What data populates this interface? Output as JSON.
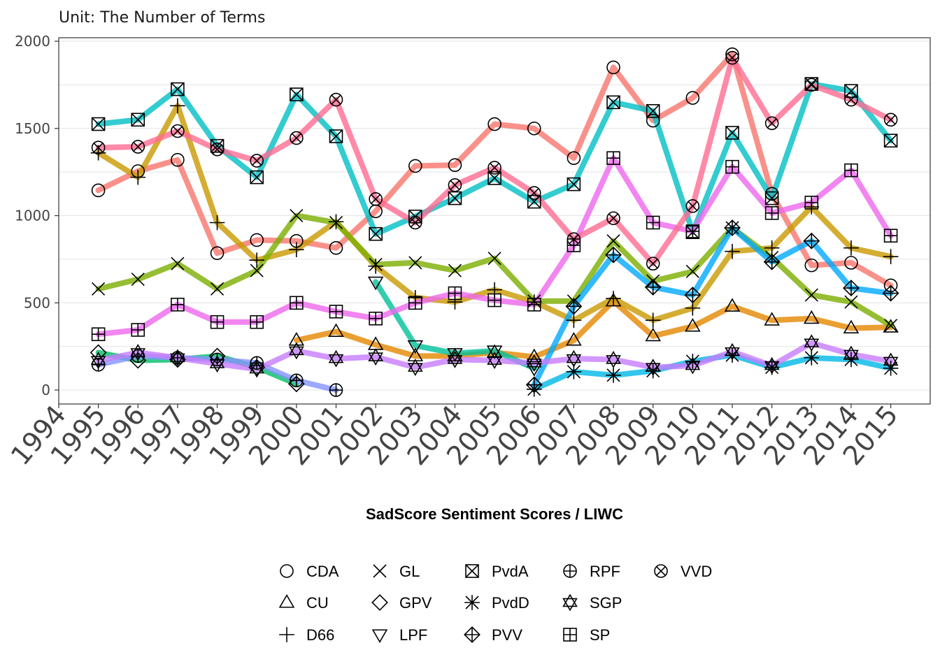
{
  "chart_data": {
    "type": "line",
    "subtitle": "Unit: The Number of Terms",
    "xlabel": "SadScore Sentiment Scores / LIWC",
    "ylabel": "",
    "xlim": [
      1994,
      2015
    ],
    "ylim": [
      -80,
      2020
    ],
    "x_ticks": [
      "1994",
      "1995",
      "1996",
      "1997",
      "1998",
      "1999",
      "2000",
      "2001",
      "2002",
      "2003",
      "2004",
      "2005",
      "2006",
      "2007",
      "2008",
      "2009",
      "2010",
      "2011",
      "2012",
      "2013",
      "2014",
      "2015"
    ],
    "y_ticks": [
      "0",
      "500",
      "1000",
      "1500",
      "2000"
    ],
    "grid": true,
    "legend_position": "bottom",
    "series": [
      {
        "name": "CDA",
        "color": "#f8766d",
        "marker": "circle",
        "x": [
          1995,
          1996,
          1997,
          1998,
          1999,
          2000,
          2001,
          2002,
          2003,
          2004,
          2005,
          2006,
          2007,
          2008,
          2009,
          2010,
          2011,
          2012,
          2013,
          2014,
          2015
        ],
        "y": [
          1145,
          1255,
          1320,
          785,
          860,
          855,
          815,
          1025,
          1285,
          1290,
          1525,
          1500,
          1330,
          1850,
          1545,
          1675,
          1925,
          1125,
          715,
          730,
          600
        ]
      },
      {
        "name": "CU",
        "color": "#e58700",
        "marker": "triangle-up",
        "x": [
          2000,
          2001,
          2002,
          2003,
          2004,
          2005,
          2006,
          2007,
          2008,
          2009,
          2010,
          2011,
          2012,
          2013,
          2014,
          2015
        ],
        "y": [
          285,
          335,
          260,
          195,
          195,
          215,
          190,
          285,
          510,
          310,
          365,
          480,
          400,
          410,
          355,
          360
        ]
      },
      {
        "name": "D66",
        "color": "#c99800",
        "marker": "plus",
        "x": [
          1995,
          1996,
          1997,
          1998,
          1999,
          2000,
          2001,
          2002,
          2003,
          2004,
          2005,
          2006,
          2007,
          2008,
          2009,
          2010,
          2011,
          2012,
          2013,
          2014,
          2015
        ],
        "y": [
          1360,
          1220,
          1630,
          960,
          745,
          805,
          965,
          710,
          530,
          505,
          575,
          505,
          400,
          525,
          400,
          470,
          795,
          815,
          1050,
          815,
          765
        ]
      },
      {
        "name": "GL",
        "color": "#7cae00",
        "marker": "x",
        "x": [
          1995,
          1996,
          1997,
          1998,
          1999,
          2000,
          2001,
          2002,
          2003,
          2004,
          2005,
          2006,
          2007,
          2008,
          2009,
          2010,
          2011,
          2012,
          2013,
          2014,
          2015
        ],
        "y": [
          580,
          635,
          725,
          580,
          685,
          1000,
          960,
          720,
          730,
          685,
          755,
          510,
          510,
          855,
          625,
          680,
          930,
          760,
          545,
          505,
          370
        ]
      },
      {
        "name": "GPV",
        "color": "#00be67",
        "marker": "diamond",
        "x": [
          1995,
          1996,
          1997,
          1998,
          1999,
          2000
        ],
        "y": [
          215,
          170,
          175,
          195,
          130,
          35
        ]
      },
      {
        "name": "LPF",
        "color": "#00c19a",
        "marker": "triangle-down",
        "x": [
          2002,
          2003,
          2004,
          2005,
          2006
        ],
        "y": [
          620,
          255,
          210,
          225,
          125
        ]
      },
      {
        "name": "PvdA",
        "color": "#00bfc4",
        "marker": "square-x",
        "x": [
          1995,
          1996,
          1997,
          1998,
          1999,
          2000,
          2001,
          2002,
          2003,
          2004,
          2005,
          2006,
          2007,
          2008,
          2009,
          2010,
          2011,
          2012,
          2013,
          2014,
          2015
        ],
        "y": [
          1525,
          1550,
          1725,
          1400,
          1220,
          1695,
          1455,
          895,
          995,
          1100,
          1215,
          1080,
          1180,
          1650,
          1600,
          905,
          1475,
          1100,
          1755,
          1715,
          1430
        ]
      },
      {
        "name": "PvdD",
        "color": "#00b8e7",
        "marker": "asterisk",
        "x": [
          2006,
          2007,
          2008,
          2009,
          2010,
          2011,
          2012,
          2013,
          2014,
          2015
        ],
        "y": [
          5,
          105,
          85,
          110,
          165,
          200,
          130,
          185,
          175,
          125
        ]
      },
      {
        "name": "PVV",
        "color": "#00a9ff",
        "marker": "diamond-plus",
        "x": [
          2006,
          2007,
          2008,
          2009,
          2010,
          2011,
          2012,
          2013,
          2014,
          2015
        ],
        "y": [
          30,
          480,
          775,
          590,
          545,
          930,
          735,
          855,
          585,
          555
        ]
      },
      {
        "name": "RPF",
        "color": "#8494ff",
        "marker": "circle-plus",
        "x": [
          1995,
          1996,
          1997,
          1998,
          1999,
          2000,
          2001
        ],
        "y": [
          145,
          195,
          185,
          175,
          155,
          55,
          0
        ]
      },
      {
        "name": "SGP",
        "color": "#c77cff",
        "marker": "star6",
        "x": [
          1995,
          1996,
          1997,
          1998,
          1999,
          2000,
          2001,
          2002,
          2003,
          2004,
          2005,
          2006,
          2007,
          2008,
          2009,
          2010,
          2011,
          2012,
          2013,
          2014,
          2015
        ],
        "y": [
          170,
          215,
          185,
          150,
          120,
          225,
          180,
          190,
          130,
          175,
          170,
          155,
          180,
          175,
          130,
          140,
          220,
          140,
          270,
          205,
          165
        ]
      },
      {
        "name": "SP",
        "color": "#ed68ed",
        "marker": "square-plus",
        "x": [
          1995,
          1996,
          1997,
          1998,
          1999,
          2000,
          2001,
          2002,
          2003,
          2004,
          2005,
          2006,
          2007,
          2008,
          2009,
          2010,
          2011,
          2012,
          2013,
          2014,
          2015
        ],
        "y": [
          320,
          345,
          490,
          390,
          390,
          500,
          450,
          410,
          500,
          555,
          515,
          490,
          830,
          1330,
          960,
          910,
          1280,
          1015,
          1075,
          1260,
          885
        ]
      },
      {
        "name": "VVD",
        "color": "#ff6c91",
        "marker": "circle-x",
        "x": [
          1995,
          1996,
          1997,
          1998,
          1999,
          2000,
          2001,
          2002,
          2003,
          2004,
          2005,
          2006,
          2007,
          2008,
          2009,
          2010,
          2011,
          2012,
          2013,
          2014,
          2015
        ],
        "y": [
          1390,
          1395,
          1485,
          1380,
          1315,
          1445,
          1665,
          1095,
          960,
          1175,
          1275,
          1130,
          865,
          985,
          725,
          1055,
          1905,
          1530,
          1750,
          1665,
          1550
        ]
      }
    ]
  }
}
